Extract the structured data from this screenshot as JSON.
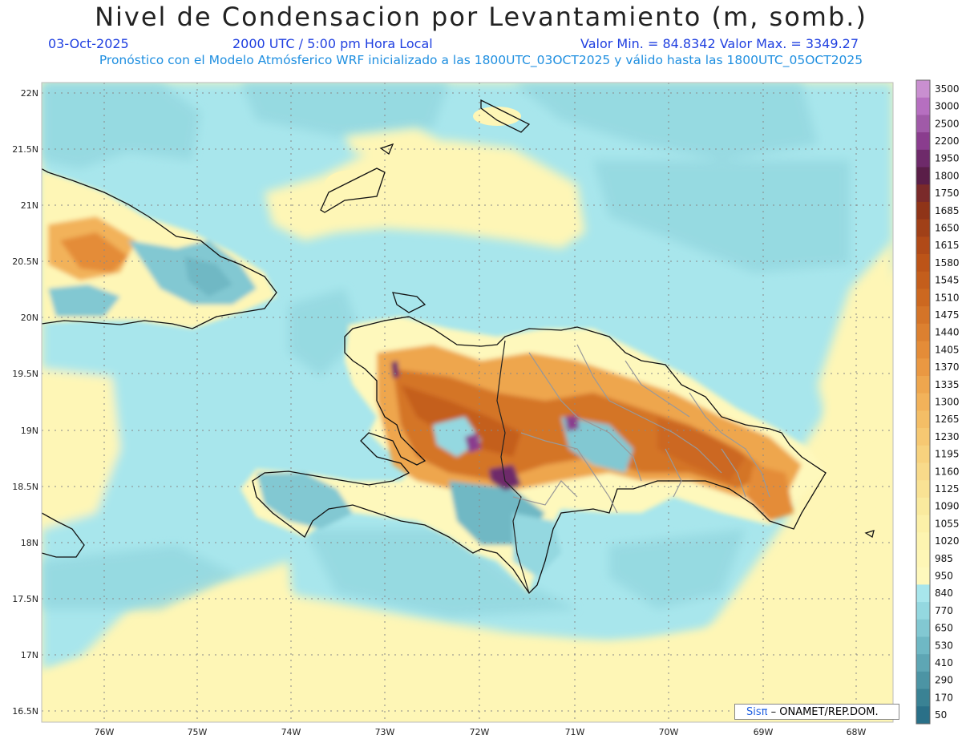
{
  "header": {
    "title": "Nivel de Condensacion por Levantamiento (m, somb.)",
    "date": "03-Oct-2025",
    "time": "2000 UTC / 5:00 pm Hora Local",
    "minmax": "Valor Min. = 84.8342   Valor Max. = 3349.27",
    "model": "Pronóstico con el Modelo Atmósferico WRF inicializado a las 1800UTC_03OCT2025 y válido hasta las  1800UTC_05OCT2025"
  },
  "axes": {
    "lat_labels": [
      "22N",
      "21.5N",
      "21N",
      "20.5N",
      "20N",
      "19.5N",
      "19N",
      "18.5N",
      "18N",
      "17.5N",
      "17N",
      "16.5N"
    ],
    "lon_labels": [
      "76W",
      "75W",
      "74W",
      "73W",
      "72W",
      "71W",
      "70W",
      "69W",
      "68W"
    ]
  },
  "colorbar": {
    "labels": [
      "3500",
      "3000",
      "2500",
      "2200",
      "1950",
      "1800",
      "1750",
      "1685",
      "1650",
      "1615",
      "1580",
      "1545",
      "1510",
      "1475",
      "1440",
      "1405",
      "1370",
      "1335",
      "1300",
      "1265",
      "1230",
      "1195",
      "1160",
      "1125",
      "1090",
      "1055",
      "1020",
      "985",
      "950",
      "840",
      "770",
      "650",
      "530",
      "410",
      "290",
      "170",
      "50"
    ],
    "colors": [
      "#c98fd0",
      "#b66fc0",
      "#a05aa8",
      "#8a3d8e",
      "#6e2a6a",
      "#5a1e48",
      "#7a2a2a",
      "#8f3418",
      "#a04018",
      "#b04a18",
      "#bc5418",
      "#c45e1c",
      "#cc6820",
      "#d47428",
      "#dc8030",
      "#e48c38",
      "#ea9842",
      "#eea64e",
      "#f2b25a",
      "#f4be66",
      "#f6c872",
      "#f7d27e",
      "#f8da8a",
      "#f9e294",
      "#faea9e",
      "#fcf0a8",
      "#fdf4b0",
      "#fef6b6",
      "#fef8bc",
      "#a8e6ec",
      "#94d8e0",
      "#82c8d2",
      "#6fb8c4",
      "#5ea6b4",
      "#4c94a4",
      "#3a8294",
      "#2a7088"
    ]
  },
  "credit": {
    "sis": "Sisπ",
    "org": " – ONAMET/REP.DOM."
  }
}
